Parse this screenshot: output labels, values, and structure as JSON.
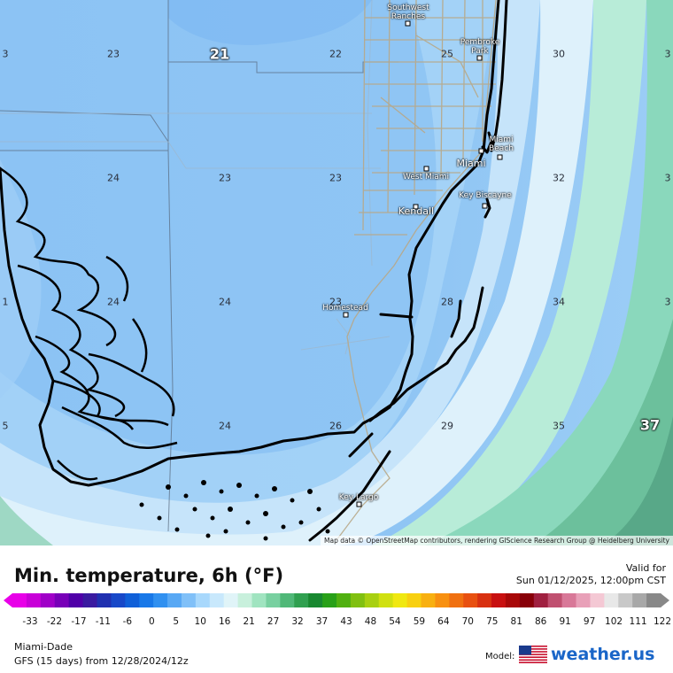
{
  "map": {
    "attribution": "Map data © OpenStreetMap contributors, rendering GIScience Research Group @ Heidelberg University",
    "values": [
      {
        "label": "3"
      },
      {
        "label": "23"
      },
      {
        "label": "21"
      },
      {
        "label": "22"
      },
      {
        "label": "25"
      },
      {
        "label": "30"
      },
      {
        "label": "3"
      },
      {
        "label": "24"
      },
      {
        "label": "23"
      },
      {
        "label": "23"
      },
      {
        "label": "32"
      },
      {
        "label": "3"
      },
      {
        "label": "1"
      },
      {
        "label": "24"
      },
      {
        "label": "24"
      },
      {
        "label": "23"
      },
      {
        "label": "28"
      },
      {
        "label": "34"
      },
      {
        "label": "3"
      },
      {
        "label": "5"
      },
      {
        "label": "24"
      },
      {
        "label": "26"
      },
      {
        "label": "29"
      },
      {
        "label": "35"
      },
      {
        "label": "37"
      }
    ],
    "cities": [
      {
        "label": "Southwest\nRanches"
      },
      {
        "label": "Pembroke\nPark"
      },
      {
        "label": "Miami\nBeach"
      },
      {
        "label": "Miami"
      },
      {
        "label": "West Miami"
      },
      {
        "label": "Key Biscayne"
      },
      {
        "label": "Kendall"
      },
      {
        "label": "Homestead"
      },
      {
        "label": "Key Largo"
      }
    ]
  },
  "legend": {
    "title": "Min. temperature, 6h (°F)",
    "valid_label": "Valid for",
    "valid_time": "Sun 01/12/2025, 12:00pm CST",
    "region": "Miami-Dade",
    "model_run": "GFS (15 days) from  12/28/2024/12z",
    "model_label": "Model:",
    "brand": "weather.us",
    "ticks": [
      "-33",
      "-22",
      "-17",
      "-11",
      "-6",
      "0",
      "5",
      "10",
      "16",
      "21",
      "27",
      "32",
      "37",
      "43",
      "48",
      "54",
      "59",
      "64",
      "70",
      "75",
      "81",
      "86",
      "91",
      "97",
      "102",
      "111",
      "122"
    ],
    "colors": [
      "#e800e8",
      "#c800d8",
      "#a000c8",
      "#7800b8",
      "#5000a8",
      "#3a1aa0",
      "#2030b0",
      "#1848c8",
      "#1060d8",
      "#1878e8",
      "#3090f0",
      "#58a8f4",
      "#80c0f8",
      "#a8d8fc",
      "#c8e8fc",
      "#e0f4f8",
      "#c8f0dc",
      "#a0e4c0",
      "#78d0a0",
      "#50b878",
      "#30a050",
      "#188830",
      "#28a018",
      "#50b010",
      "#80c010",
      "#a8d010",
      "#d0e010",
      "#f0e810",
      "#f8d010",
      "#f8b010",
      "#f89010",
      "#f07010",
      "#e85010",
      "#d83010",
      "#c81010",
      "#a80808",
      "#880008",
      "#a02040",
      "#c05070",
      "#d87898",
      "#e8a0b8",
      "#f4c8d4",
      "#e8e8e8",
      "#c8c8c8",
      "#a8a8a8",
      "#888888"
    ]
  }
}
